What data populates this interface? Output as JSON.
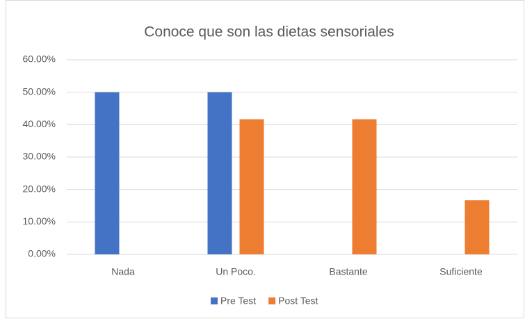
{
  "chart_data": {
    "type": "bar",
    "title": "Conoce que son las dietas sensoriales",
    "categories": [
      "Nada",
      "Un Poco.",
      "Bastante",
      "Suficiente"
    ],
    "series": [
      {
        "name": "Pre Test",
        "color": "#4472c4",
        "values": [
          50,
          50,
          0,
          0
        ]
      },
      {
        "name": "Post Test",
        "color": "#ed7d31",
        "values": [
          0,
          41.67,
          41.67,
          16.67
        ]
      }
    ],
    "ylim": [
      0,
      60
    ],
    "yticks": [
      {
        "value": 0,
        "label": "0.00%"
      },
      {
        "value": 10,
        "label": "10.00%"
      },
      {
        "value": 20,
        "label": "20.00%"
      },
      {
        "value": 30,
        "label": "30.00%"
      },
      {
        "value": 40,
        "label": "40.00%"
      },
      {
        "value": 50,
        "label": "50.00%"
      },
      {
        "value": 60,
        "label": "60.00%"
      }
    ],
    "grid": true,
    "legend": "bottom"
  }
}
